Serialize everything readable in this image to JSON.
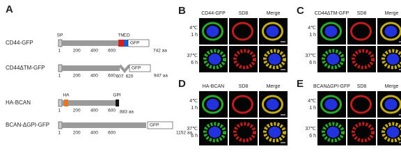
{
  "panel_a": {
    "label": "A",
    "constructs": [
      {
        "name": "CD44-GFP",
        "domains": [
          "SP",
          "TM",
          "CD"
        ],
        "box": "GFP",
        "ticks": [
          1,
          200,
          400,
          600
        ],
        "end": "742 aa"
      },
      {
        "name": "CD44ΔTM-GFP",
        "box": "GFP",
        "ticks": [
          1,
          200,
          400,
          600
        ],
        "cut": [
          607,
          620
        ],
        "end": "947 aa"
      },
      {
        "name": "HA-BCAN",
        "domains": [
          "HA",
          "GPI"
        ],
        "ticks": [
          1,
          200,
          400,
          600
        ],
        "end": "883 aa"
      },
      {
        "name": "BCAN-ΔGPI-GFP",
        "box": "GFP",
        "ticks": [
          1,
          200,
          400,
          600
        ],
        "end": "1152 aa"
      }
    ]
  },
  "panels": [
    {
      "label": "B",
      "channels": [
        "CD44-GFP",
        "SD8",
        "Merge"
      ],
      "rows": [
        [
          "4℃",
          "1 h"
        ],
        [
          "37℃",
          "6 h"
        ]
      ]
    },
    {
      "label": "C",
      "channels": [
        "CD44ΔTM-GFP",
        "SD8",
        "Merge"
      ],
      "rows": [
        [
          "4℃",
          "1 h"
        ],
        [
          "37℃",
          "6 h"
        ]
      ]
    },
    {
      "label": "D",
      "channels": [
        "HA-BCAN",
        "SD8",
        "Merge"
      ],
      "rows": [
        [
          "4℃",
          "1 h"
        ],
        [
          "37℃",
          "6 h"
        ]
      ]
    },
    {
      "label": "E",
      "channels": [
        "BCANΔGPI-GFP",
        "SD8",
        "Merge"
      ],
      "rows": [
        [
          "4℃",
          "1 h"
        ],
        [
          "37℃",
          "6 h"
        ]
      ]
    }
  ]
}
